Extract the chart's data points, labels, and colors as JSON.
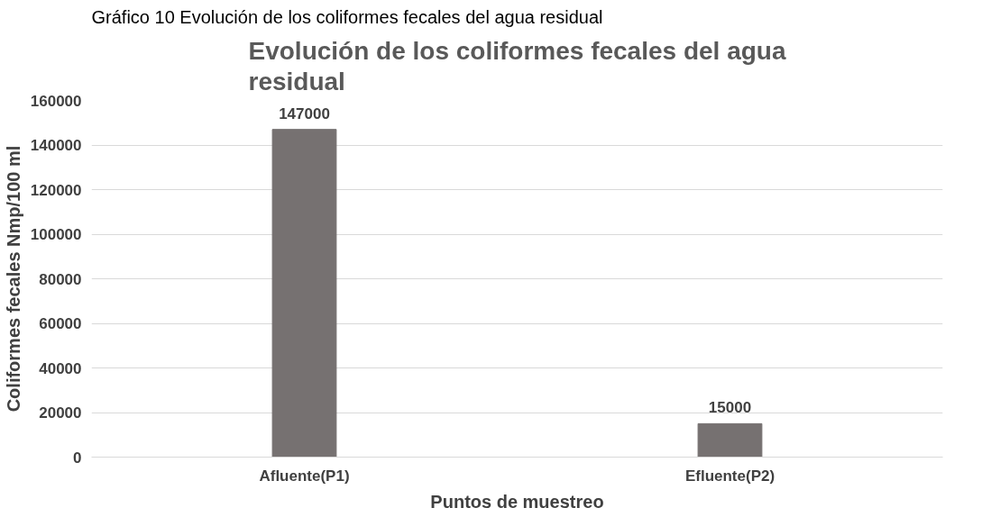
{
  "chart_data": {
    "type": "bar",
    "title": "Evolución de los coliformes fecales del agua residual",
    "annotations": [
      "Gráfico 10 Evolución de los coliformes fecales del agua residual"
    ],
    "xlabel": "Puntos de muestreo",
    "ylabel": "Coliformes fecales Nmp/100 ml",
    "categories": [
      "Afluente(P1)",
      "Efluente(P2)"
    ],
    "values": [
      147000,
      15000
    ],
    "color": "#767171",
    "ylim": [
      0,
      160000
    ],
    "yticks": [
      0,
      20000,
      40000,
      60000,
      80000,
      100000,
      120000,
      140000,
      160000
    ],
    "grid": "y",
    "data_labels": true
  }
}
